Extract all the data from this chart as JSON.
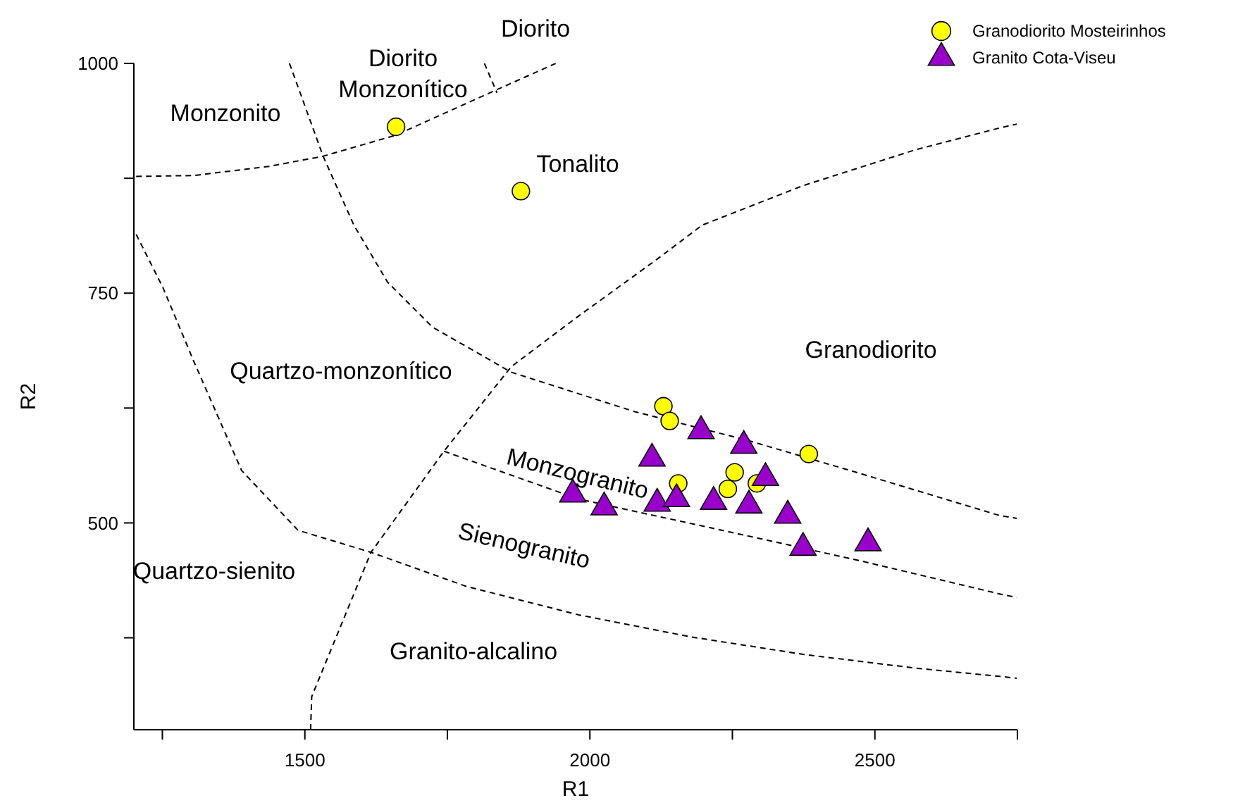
{
  "chart_data": {
    "type": "scatter",
    "xlabel": "R1",
    "ylabel": "R2",
    "xlim": [
      1200,
      2750
    ],
    "ylim": [
      275,
      1000
    ],
    "xticks": [
      {
        "value": 1250,
        "label": null
      },
      1500,
      {
        "value": 1750,
        "label": null
      },
      2000,
      {
        "value": 2250,
        "label": null
      },
      2500,
      {
        "value": 2750,
        "label": null
      }
    ],
    "yticks": [
      {
        "value": 375,
        "label": null
      },
      500,
      {
        "value": 625,
        "label": null
      },
      750,
      {
        "value": 875,
        "label": null
      },
      1000
    ],
    "grid": false,
    "legend": "top right",
    "series": [
      {
        "type": "line",
        "color": "#000000",
        "line_style": "dashed",
        "marker": "none",
        "x": [
          1204,
          1305,
          1438,
          1532,
          1660,
          1803,
          1940
        ],
        "values": [
          877,
          878,
          888,
          899,
          922,
          962,
          1000
        ]
      },
      {
        "type": "line",
        "color": "#000000",
        "line_style": "dashed",
        "marker": "none",
        "x": [
          1815,
          1837
        ],
        "values": [
          1000,
          968
        ]
      },
      {
        "type": "line",
        "color": "#000000",
        "line_style": "dashed",
        "marker": "none",
        "x": [
          1473,
          1532,
          1586,
          1645,
          1724,
          1862,
          2079,
          2276,
          2473,
          2719,
          2749
        ],
        "values": [
          1000,
          899,
          824,
          762,
          713,
          664,
          621,
          590,
          554,
          508,
          505
        ]
      },
      {
        "type": "line",
        "color": "#000000",
        "line_style": "dashed",
        "marker": "none",
        "x": [
          1204,
          1251,
          1305,
          1389,
          1488,
          1616,
          1783,
          1980,
          2177,
          2374,
          2571,
          2719,
          2749
        ],
        "values": [
          814,
          756,
          676,
          557,
          492,
          468,
          431,
          400,
          376,
          357,
          342,
          333,
          331
        ]
      },
      {
        "type": "line",
        "color": "#000000",
        "line_style": "dashed",
        "marker": "none",
        "x": [
          1510,
          1512,
          1616,
          1744,
          1862,
          1980,
          2118,
          2197,
          2374,
          2571,
          2714,
          2749
        ],
        "values": [
          275,
          311,
          468,
          578,
          670,
          725,
          787,
          824,
          867,
          906,
          929,
          934
        ]
      },
      {
        "type": "line",
        "color": "#000000",
        "line_style": "dashed",
        "marker": "none",
        "x": [
          1744,
          1980,
          2276,
          2473,
          2724,
          2749
        ],
        "values": [
          578,
          526,
          486,
          459,
          422,
          419
        ]
      },
      {
        "name": "Granodiorito Mosteirinhos",
        "marker": "circle",
        "color": "#ffff00",
        "x": [
          1660,
          1879,
          2129,
          2140,
          2384,
          2155,
          2254,
          2242,
          2293
        ],
        "values": [
          931,
          861,
          627,
          611,
          575,
          543,
          555,
          537,
          543
        ]
      },
      {
        "name": "Granito Cota-Viseu",
        "marker": "triangle",
        "color": "#9900cc",
        "x": [
          2195,
          2270,
          2109,
          2308,
          1970,
          2025,
          2118,
          2152,
          2217,
          2279,
          2347,
          2374,
          2488
        ],
        "values": [
          600,
          584,
          570,
          549,
          531,
          517,
          521,
          526,
          523,
          519,
          508,
          473,
          478
        ]
      }
    ],
    "annotations": [
      "Monzonito",
      "Diorito\nMonzonítico",
      "Diorito",
      "Tonalito",
      "Quartzo-monzonítico",
      "Granodiorito",
      "Monzogranito",
      "Sienogranito",
      "Quartzo-sienito",
      "Granito-alcalino"
    ]
  }
}
